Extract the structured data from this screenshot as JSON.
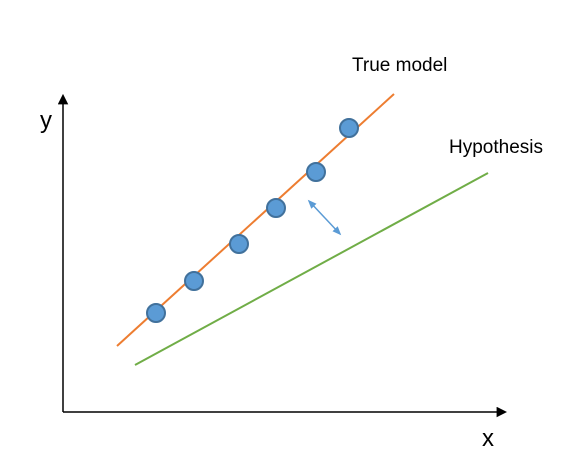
{
  "labels": {
    "x_axis": "x",
    "y_axis": "y",
    "true_model": "True model",
    "hypothesis": "Hypothesis"
  },
  "colors": {
    "background": "#ffffff",
    "axis": "#000000",
    "true_model_line": "#ed7d31",
    "hypothesis_line": "#70ad47",
    "data_point_fill": "#5b9bd5",
    "data_point_stroke": "#41719c",
    "error_arrow": "#5b9bd5"
  },
  "data_points_count": 6
}
